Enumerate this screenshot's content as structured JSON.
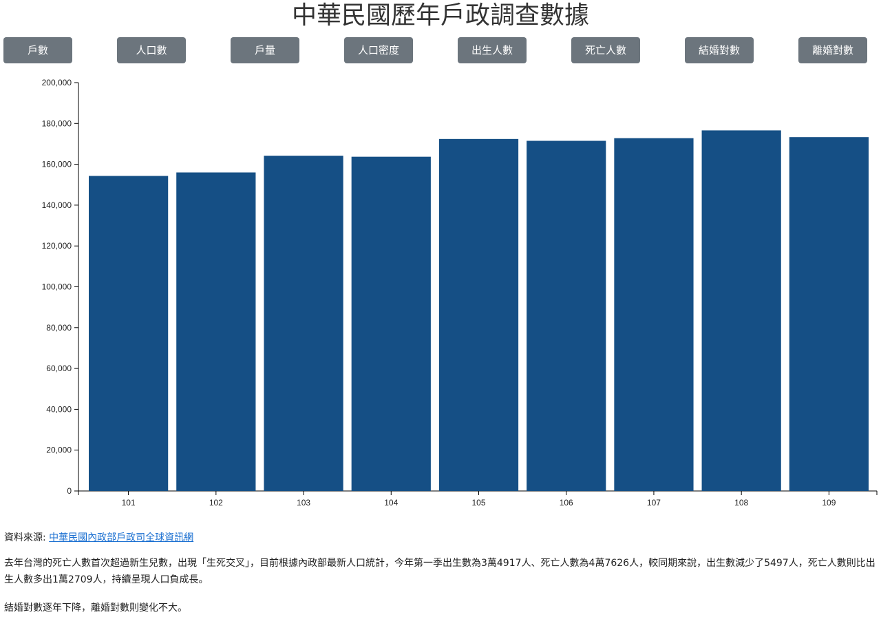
{
  "title": "中華民國歷年戶政調查數據",
  "buttons": [
    "戶數",
    "人口數",
    "戶量",
    "人口密度",
    "出生人數",
    "死亡人數",
    "結婚對數",
    "離婚對數"
  ],
  "chart_data": {
    "type": "bar",
    "categories": [
      "101",
      "102",
      "103",
      "104",
      "105",
      "106",
      "107",
      "108",
      "109"
    ],
    "values": [
      154300,
      156000,
      164200,
      163700,
      172400,
      171500,
      172800,
      176600,
      173300
    ],
    "ylim": [
      0,
      200000
    ],
    "yticks": [
      0,
      20000,
      40000,
      60000,
      80000,
      100000,
      120000,
      140000,
      160000,
      180000,
      200000
    ],
    "ytick_labels": [
      "0",
      "20,000",
      "40,000",
      "60,000",
      "80,000",
      "100,000",
      "120,000",
      "140,000",
      "160,000",
      "180,000",
      "200,000"
    ],
    "bar_color": "#154f85",
    "xlabel": "",
    "ylabel": ""
  },
  "source": {
    "prefix": "資料來源: ",
    "link_text": "中華民國內政部戶政司全球資訊網"
  },
  "paragraphs": [
    "去年台灣的死亡人數首次超過新生兒數，出現「生死交叉」，目前根據內政部最新人口統計，今年第一季出生數為3萬4917人、死亡人數為4萬7626人，較同期來說，出生數減少了5497人，死亡人數則比出生人數多出1萬2709人，持續呈現人口負成長。",
    "結婚對數逐年下降，離婚對數則變化不大。"
  ]
}
